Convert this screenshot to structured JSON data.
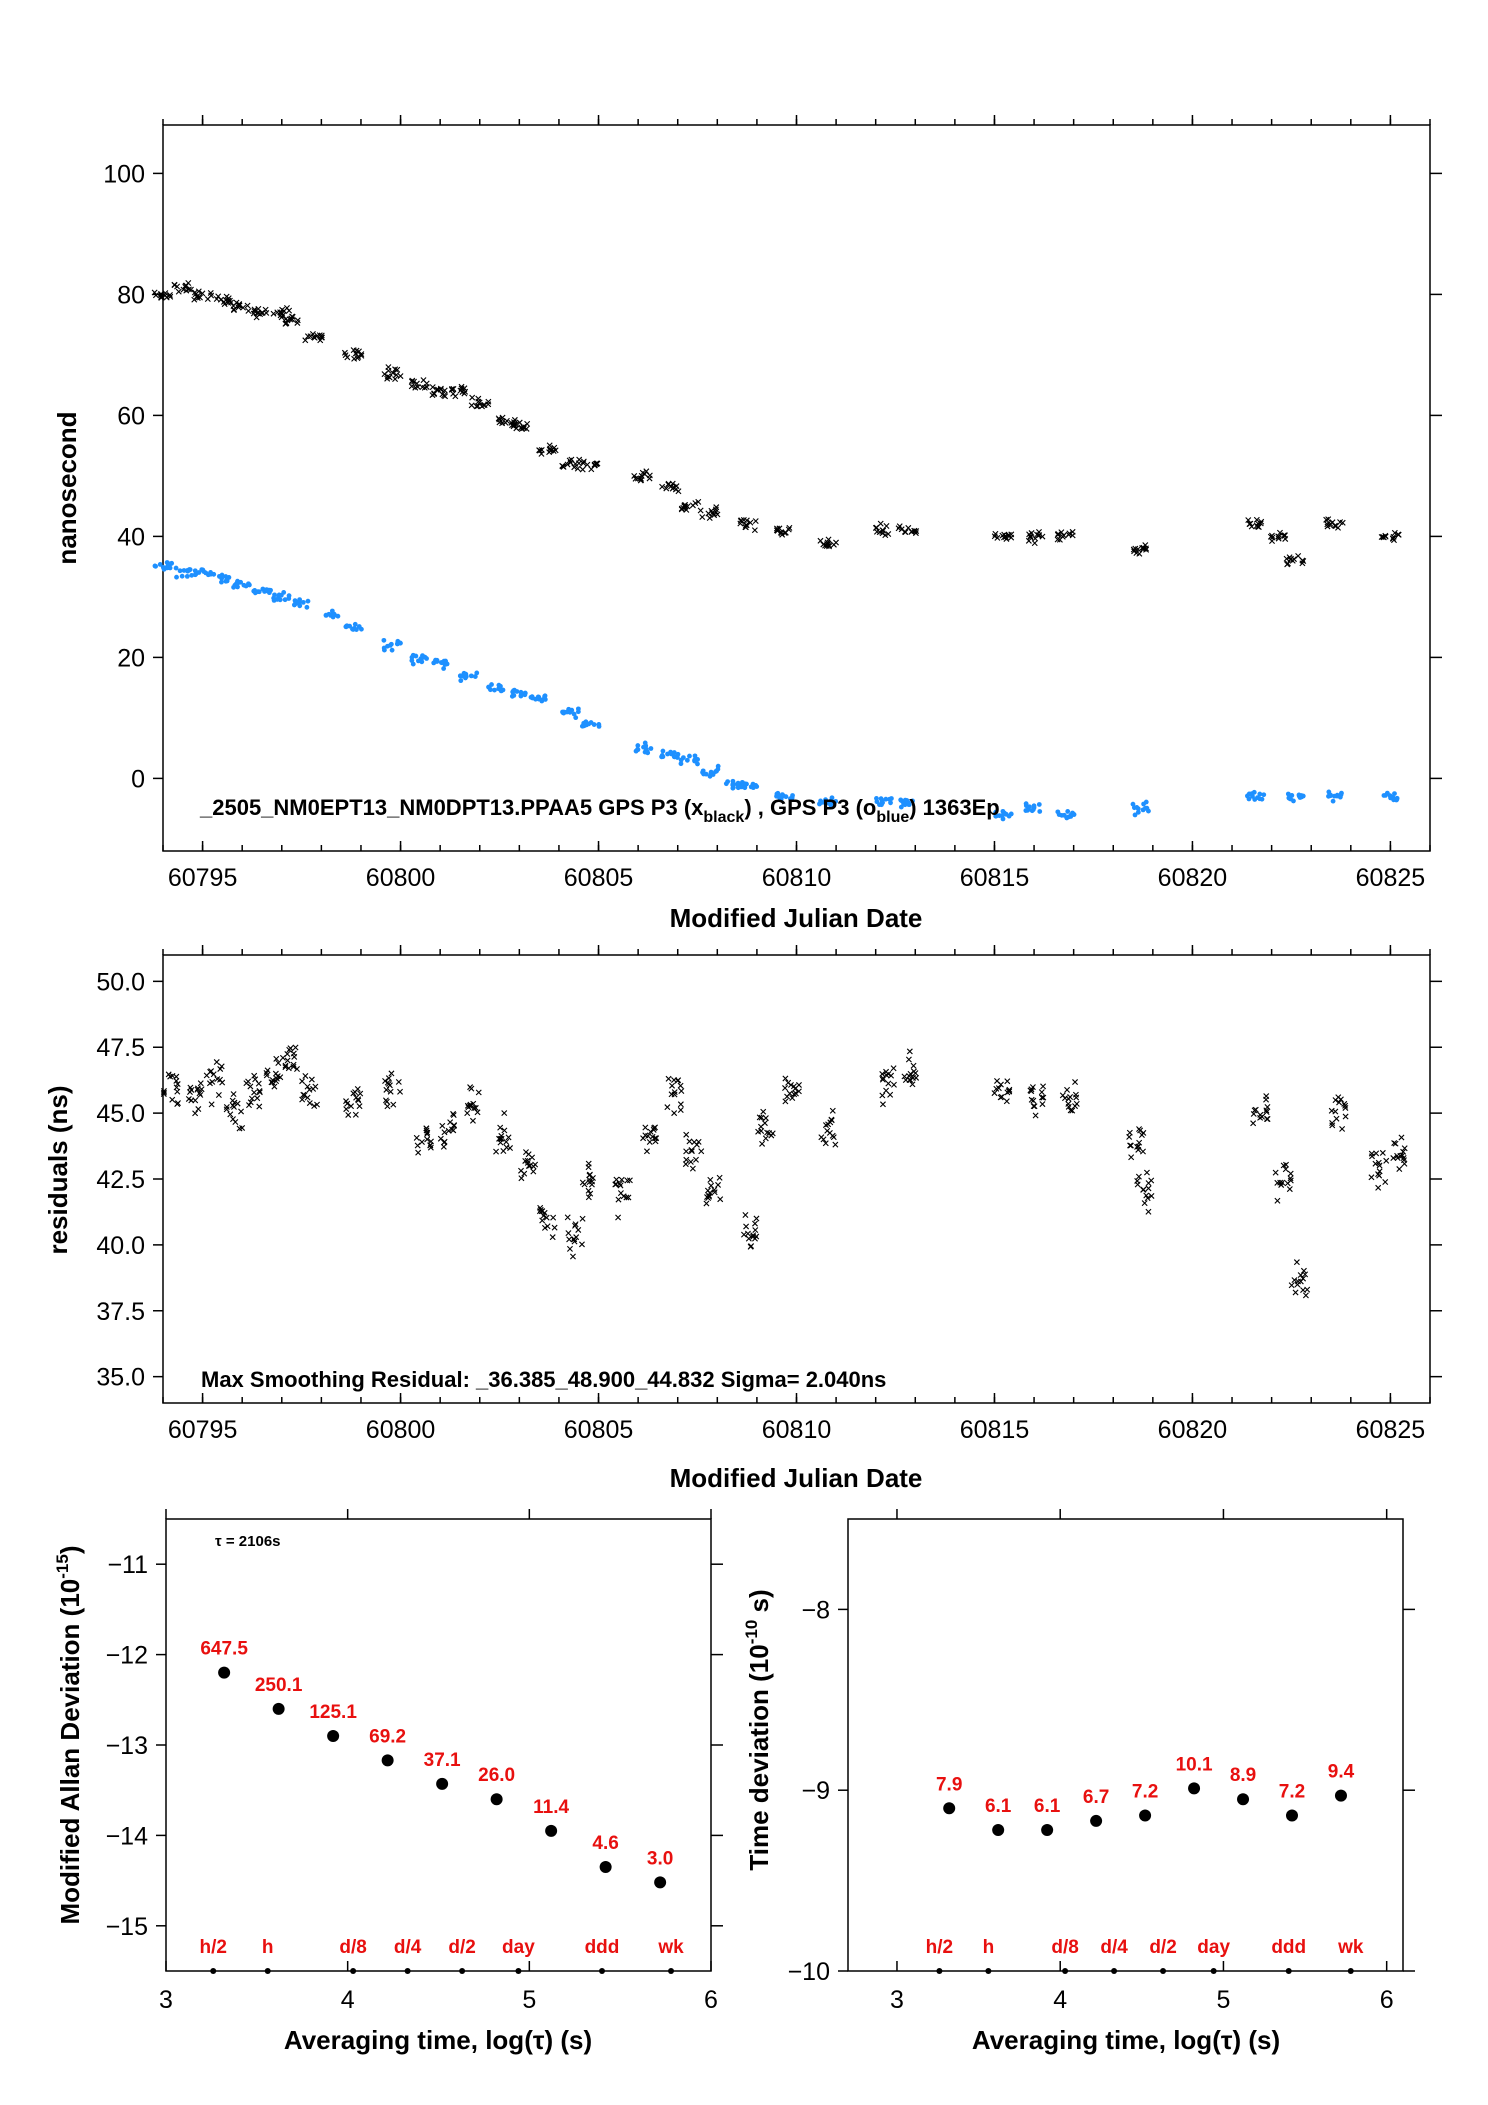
{
  "colors": {
    "black_series": "#000000",
    "blue_series": "#1e90ff",
    "annotation": "#e8100f"
  },
  "chart_data": [
    {
      "type": "scatter",
      "xlabel": "Modified Julian Date",
      "ylabel": "nanosecond",
      "xlim": [
        60794,
        60826
      ],
      "ylim": [
        -12,
        108
      ],
      "xticks": [
        "60795",
        "60800",
        "60805",
        "60810",
        "60815",
        "60820",
        "60825"
      ],
      "yticks": [
        "0",
        "20",
        "40",
        "60",
        "80",
        "100"
      ],
      "annotation": "_2505_NM0EPT13_NM0DPT13.PPAA5     GPS P3 (xblack) , GPS P3 (oblue)  1363Ep",
      "series": [
        {
          "marker": "x",
          "color": "#000000",
          "x": [
            60794.0,
            60794.5,
            60795.0,
            60795.5,
            60796.0,
            60796.5,
            60797.0,
            60797.3,
            60797.8,
            60798.8,
            60799.8,
            60800.5,
            60801.0,
            60801.5,
            60802.0,
            60802.7,
            60803.0,
            60803.7,
            60804.3,
            60804.8,
            60806.1,
            60806.8,
            60807.3,
            60807.8,
            60808.8,
            60809.7,
            60810.8,
            60812.2,
            60812.8,
            60815.2,
            60816.0,
            60816.8,
            60818.7,
            60821.6,
            60822.2,
            60822.6,
            60823.6,
            60825.0
          ],
          "y": [
            80,
            81,
            80,
            79,
            78,
            77,
            77,
            76,
            73,
            70,
            67,
            65,
            64,
            64,
            62,
            59,
            58,
            54,
            52,
            52,
            50,
            48,
            45,
            44,
            42,
            41,
            39,
            41,
            41,
            40,
            40,
            40,
            38,
            42,
            40,
            36,
            42,
            40
          ]
        },
        {
          "marker": "o",
          "color": "#1e90ff",
          "x": [
            60794.0,
            60794.5,
            60795.0,
            60795.5,
            60796.0,
            60796.5,
            60797.0,
            60797.5,
            60798.3,
            60798.8,
            60799.8,
            60800.5,
            60801.0,
            60801.7,
            60802.4,
            60803.0,
            60803.5,
            60804.3,
            60804.8,
            60806.1,
            60806.8,
            60807.3,
            60807.8,
            60808.4,
            60808.8,
            60809.7,
            60810.8,
            60812.2,
            60812.8,
            60815.2,
            60816.0,
            60816.8,
            60818.7,
            60821.6,
            60822.6,
            60823.6,
            60825.0
          ],
          "y": [
            35,
            34,
            34,
            33,
            32,
            31,
            30,
            29,
            27,
            25,
            22,
            20,
            19,
            17,
            15,
            14,
            13,
            11,
            9,
            5,
            4,
            3,
            1,
            -1,
            -1,
            -3,
            -4,
            -4,
            -4,
            -6,
            -5,
            -6,
            -5,
            -3,
            -3,
            -3,
            -3
          ]
        }
      ]
    },
    {
      "type": "scatter",
      "xlabel": "Modified Julian Date",
      "ylabel": "residuals (ns)",
      "xlim": [
        60794,
        60826
      ],
      "ylim": [
        34,
        51
      ],
      "xticks": [
        "60795",
        "60800",
        "60805",
        "60810",
        "60815",
        "60820",
        "60825"
      ],
      "yticks": [
        "35.0",
        "37.5",
        "40.0",
        "42.5",
        "45.0",
        "47.5",
        "50.0"
      ],
      "annotation": "Max Smoothing Residual: _36.385_48.900_44.832  Sigma= 2.040ns",
      "series": [
        {
          "marker": "x",
          "color": "#000000",
          "x": [
            60794.2,
            60794.8,
            60795.3,
            60795.8,
            60796.3,
            60796.8,
            60797.2,
            60797.7,
            60798.8,
            60799.8,
            60800.6,
            60801.2,
            60801.8,
            60802.6,
            60803.2,
            60803.7,
            60804.4,
            60804.8,
            60805.6,
            60806.3,
            60806.9,
            60807.4,
            60807.9,
            60808.8,
            60809.2,
            60809.9,
            60810.8,
            60812.3,
            60812.9,
            60815.2,
            60816.1,
            60816.9,
            60818.6,
            60818.8,
            60821.7,
            60822.3,
            60822.7,
            60823.7,
            60824.7,
            60825.2
          ],
          "y": [
            46.0,
            45.5,
            46.2,
            45.0,
            45.8,
            46.5,
            47.0,
            46.0,
            45.5,
            45.8,
            44.0,
            44.5,
            45.5,
            44.0,
            43.0,
            41.0,
            40.5,
            42.5,
            42.0,
            44.0,
            45.5,
            43.5,
            42.0,
            40.5,
            44.5,
            46.0,
            44.5,
            46.0,
            46.5,
            46.0,
            45.5,
            45.5,
            44.0,
            42.0,
            45.0,
            42.5,
            38.5,
            45.0,
            43.0,
            43.5
          ]
        }
      ]
    },
    {
      "type": "scatter",
      "xlabel": "Averaging time, log(τ) (s)",
      "ylabel": "Modified Allan Deviation (10",
      "ylabel_sup": "-15",
      "ylabel_end": ")",
      "xlim": [
        3,
        6
      ],
      "ylim": [
        -15.5,
        -10.5
      ],
      "xticks": [
        "3",
        "4",
        "5",
        "6"
      ],
      "yticks": [
        "−15",
        "−14",
        "−13",
        "−12",
        "−11"
      ],
      "tau_note": "τ = 2106s",
      "x": [
        3.32,
        3.62,
        3.92,
        4.22,
        4.52,
        4.82,
        5.12,
        5.42,
        5.72
      ],
      "y": [
        -12.2,
        -12.6,
        -12.9,
        -13.17,
        -13.43,
        -13.6,
        -13.95,
        -14.35,
        -14.52
      ],
      "point_labels": [
        "647.5",
        "250.1",
        "125.1",
        "69.2",
        "37.1",
        "26.0",
        "11.4",
        "4.6",
        "3.0"
      ],
      "markers": {
        "x": [
          3.26,
          3.56,
          4.03,
          4.33,
          4.63,
          4.94,
          5.4,
          5.78
        ],
        "labels": [
          "h/2",
          "h",
          "d/8",
          "d/4",
          "d/2",
          "day",
          "ddd",
          "wk"
        ]
      }
    },
    {
      "type": "scatter",
      "xlabel": "Averaging time, log(τ) (s)",
      "ylabel": "Time deviation (10",
      "ylabel_sup": "-10",
      "ylabel_end": " s)",
      "xlim": [
        2.7,
        6.1
      ],
      "ylim": [
        -10,
        -7.5
      ],
      "xticks": [
        "3",
        "4",
        "5",
        "6"
      ],
      "yticks": [
        "−10",
        "−9",
        "−8"
      ],
      "x": [
        3.32,
        3.62,
        3.92,
        4.22,
        4.52,
        4.82,
        5.12,
        5.42,
        5.72
      ],
      "y": [
        -9.1,
        -9.22,
        -9.22,
        -9.17,
        -9.14,
        -8.99,
        -9.05,
        -9.14,
        -9.03
      ],
      "point_labels": [
        "7.9",
        "6.1",
        "6.1",
        "6.7",
        "7.2",
        "10.1",
        "8.9",
        "7.2",
        "9.4"
      ],
      "markers": {
        "x": [
          3.26,
          3.56,
          4.03,
          4.33,
          4.63,
          4.94,
          5.4,
          5.78
        ],
        "labels": [
          "h/2",
          "h",
          "d/8",
          "d/4",
          "d/2",
          "day",
          "ddd",
          "wk"
        ]
      }
    }
  ]
}
